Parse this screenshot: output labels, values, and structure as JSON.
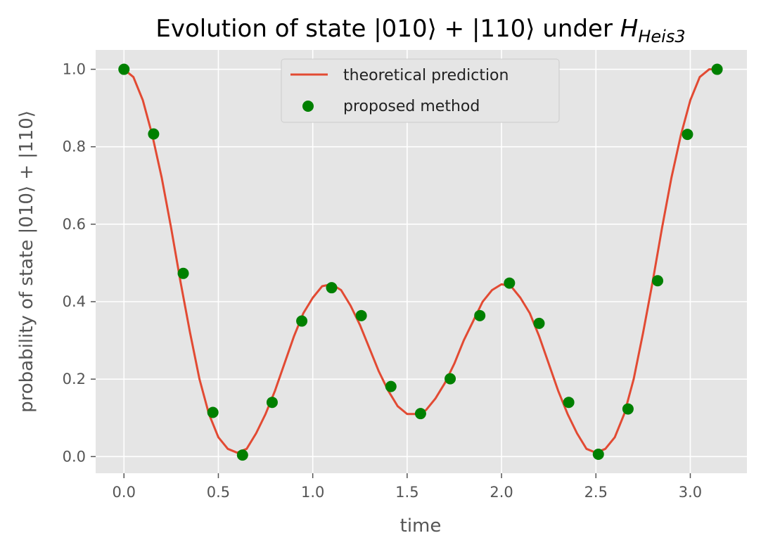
{
  "chart_data": {
    "type": "line",
    "title": {
      "main": "Evolution of state |010⟩ + |110⟩ under ",
      "var": "H",
      "sub": "Heis3"
    },
    "xlabel": "time",
    "ylabel": "probability of state |010⟩ + |110⟩",
    "xlim": [
      -0.15,
      3.3
    ],
    "ylim": [
      -0.043,
      1.05
    ],
    "xticks": [
      0.0,
      0.5,
      1.0,
      1.5,
      2.0,
      2.5,
      3.0
    ],
    "xtick_labels": [
      "0.0",
      "0.5",
      "1.0",
      "1.5",
      "2.0",
      "2.5",
      "3.0"
    ],
    "yticks": [
      0.0,
      0.2,
      0.4,
      0.6,
      0.8,
      1.0
    ],
    "ytick_labels": [
      "0.0",
      "0.2",
      "0.4",
      "0.6",
      "0.8",
      "1.0"
    ],
    "grid": true,
    "legend_position": "top-center",
    "legend": [
      "theoretical prediction",
      "proposed method"
    ],
    "colors": {
      "background": "#e5e5e5",
      "grid": "#ffffff",
      "line": "#e24a33",
      "points": "#008000"
    },
    "series": [
      {
        "name": "theoretical prediction",
        "kind": "line",
        "x": [
          0.0,
          0.05,
          0.1,
          0.15,
          0.2,
          0.25,
          0.3,
          0.35,
          0.4,
          0.45,
          0.5,
          0.55,
          0.6,
          0.65,
          0.7,
          0.75,
          0.8,
          0.85,
          0.9,
          0.95,
          1.0,
          1.05,
          1.1,
          1.15,
          1.2,
          1.25,
          1.3,
          1.35,
          1.4,
          1.45,
          1.5,
          1.55,
          1.6,
          1.65,
          1.7,
          1.75,
          1.8,
          1.85,
          1.9,
          1.95,
          2.0,
          2.05,
          2.1,
          2.15,
          2.2,
          2.25,
          2.3,
          2.35,
          2.4,
          2.45,
          2.5,
          2.55,
          2.6,
          2.65,
          2.7,
          2.75,
          2.8,
          2.85,
          2.9,
          2.95,
          3.0,
          3.05,
          3.1,
          3.1416
        ],
        "y": [
          1.0,
          0.98,
          0.92,
          0.83,
          0.72,
          0.59,
          0.45,
          0.32,
          0.2,
          0.11,
          0.05,
          0.02,
          0.01,
          0.02,
          0.06,
          0.11,
          0.17,
          0.24,
          0.31,
          0.37,
          0.41,
          0.44,
          0.445,
          0.43,
          0.39,
          0.34,
          0.28,
          0.22,
          0.17,
          0.13,
          0.11,
          0.11,
          0.12,
          0.15,
          0.19,
          0.24,
          0.3,
          0.35,
          0.4,
          0.43,
          0.445,
          0.44,
          0.41,
          0.37,
          0.31,
          0.24,
          0.17,
          0.11,
          0.06,
          0.02,
          0.01,
          0.02,
          0.05,
          0.11,
          0.2,
          0.32,
          0.45,
          0.59,
          0.72,
          0.83,
          0.92,
          0.98,
          1.0,
          1.0
        ]
      },
      {
        "name": "proposed method",
        "kind": "scatter",
        "x": [
          0.0,
          0.157,
          0.314,
          0.471,
          0.628,
          0.785,
          0.942,
          1.1,
          1.257,
          1.414,
          1.571,
          1.728,
          1.885,
          2.042,
          2.199,
          2.356,
          2.513,
          2.67,
          2.827,
          2.985,
          3.142
        ],
        "y": [
          1.0,
          0.833,
          0.473,
          0.114,
          0.004,
          0.14,
          0.35,
          0.436,
          0.364,
          0.181,
          0.111,
          0.201,
          0.364,
          0.448,
          0.344,
          0.14,
          0.006,
          0.123,
          0.454,
          0.832,
          1.0
        ]
      }
    ]
  }
}
